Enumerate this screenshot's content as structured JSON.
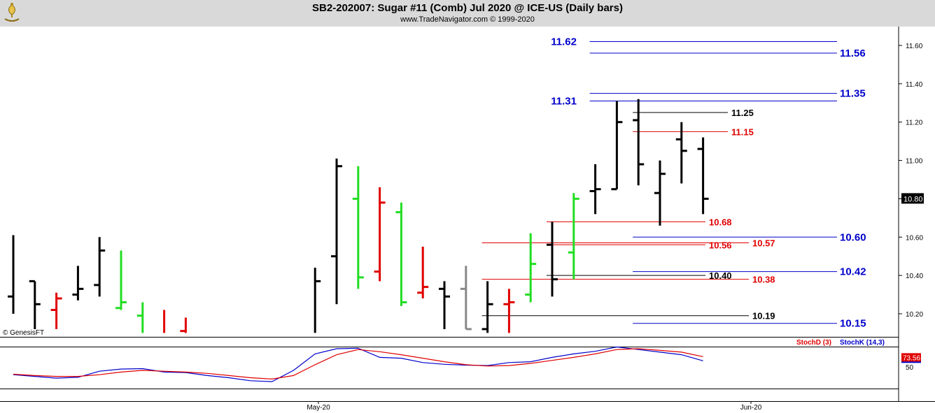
{
  "header": {
    "title": "SB2-202007:  Sugar #11 (Comb) Jul 2020 @ ICE-US  (Daily bars)",
    "subtitle": "www.TradeNavigator.com © 1999-2020",
    "logo_icon": "trade-navigator-logo-icon"
  },
  "watermark": "© GenesisFT",
  "colors": {
    "up_bar": "#000000",
    "down_bar": "#e00000",
    "green_bar": "#22dd22",
    "gray_bar": "#888888",
    "blue_level": "#0000cc",
    "red_level": "#e00000",
    "black_level": "#000000",
    "stoch_d": "#e00000",
    "stoch_k": "#0000cc",
    "header_bg": "#d9d9d9"
  },
  "chart_data": [
    {
      "type": "ohlc",
      "y_tick_labels": [
        "11.60",
        "11.40",
        "11.20",
        "11.00",
        "10.80",
        "10.60",
        "10.40",
        "10.20"
      ],
      "y_ticks": [
        11.6,
        11.4,
        11.2,
        11.0,
        10.8,
        10.6,
        10.4,
        10.2
      ],
      "ylim": [
        10.1,
        11.72
      ],
      "x_tick_labels": [
        "May-20",
        "Jun-20"
      ],
      "last_price_label": "10.80",
      "bars": [
        {
          "slot": 0,
          "open": 10.29,
          "high": 10.61,
          "low": 10.2,
          "close": null,
          "color": "black"
        },
        {
          "slot": 1,
          "open": 10.37,
          "high": 10.37,
          "low": 10.12,
          "close": 10.25,
          "color": "black"
        },
        {
          "slot": 2,
          "open": 10.22,
          "high": 10.31,
          "low": 10.12,
          "close": 10.28,
          "color": "red"
        },
        {
          "slot": 3,
          "open": 10.3,
          "high": 10.45,
          "low": 10.27,
          "close": 10.33,
          "color": "black"
        },
        {
          "slot": 4,
          "open": 10.35,
          "high": 10.6,
          "low": 10.29,
          "close": 10.53,
          "color": "black"
        },
        {
          "slot": 5,
          "open": 10.23,
          "high": 10.53,
          "low": 10.22,
          "close": 10.26,
          "color": "green"
        },
        {
          "slot": 6,
          "open": 10.19,
          "high": 10.26,
          "low": 10.1,
          "close": null,
          "color": "green"
        },
        {
          "slot": 7,
          "open": null,
          "high": 10.22,
          "low": 10.1,
          "close": null,
          "color": "red"
        },
        {
          "slot": 8,
          "open": 10.11,
          "high": 10.18,
          "low": 10.1,
          "close": null,
          "color": "red"
        },
        {
          "slot": 14,
          "open": null,
          "high": 10.44,
          "low": 10.1,
          "close": 10.37,
          "color": "black"
        },
        {
          "slot": 15,
          "open": 10.5,
          "high": 11.01,
          "low": 10.25,
          "close": 10.97,
          "color": "black"
        },
        {
          "slot": 16,
          "open": 10.8,
          "high": 10.97,
          "low": 10.33,
          "close": 10.39,
          "color": "green"
        },
        {
          "slot": 17,
          "open": 10.42,
          "high": 10.86,
          "low": 10.37,
          "close": 10.78,
          "color": "red"
        },
        {
          "slot": 18,
          "open": 10.73,
          "high": 10.78,
          "low": 10.24,
          "close": 10.26,
          "color": "green"
        },
        {
          "slot": 19,
          "open": 10.31,
          "high": 10.55,
          "low": 10.28,
          "close": 10.34,
          "color": "red"
        },
        {
          "slot": 20,
          "open": 10.33,
          "high": 10.37,
          "low": 10.12,
          "close": 10.29,
          "color": "black"
        },
        {
          "slot": 21,
          "open": 10.33,
          "high": 10.45,
          "low": 10.12,
          "close": 10.12,
          "color": "gray"
        },
        {
          "slot": 22,
          "open": 10.12,
          "high": 10.37,
          "low": 10.1,
          "close": 10.25,
          "color": "black"
        },
        {
          "slot": 23,
          "open": 10.25,
          "high": 10.33,
          "low": 10.1,
          "close": 10.26,
          "color": "red"
        },
        {
          "slot": 24,
          "open": 10.3,
          "high": 10.62,
          "low": 10.26,
          "close": 10.46,
          "color": "green"
        },
        {
          "slot": 25,
          "open": 10.56,
          "high": 10.68,
          "low": 10.29,
          "close": 10.38,
          "color": "black"
        },
        {
          "slot": 26,
          "open": 10.52,
          "high": 10.83,
          "low": 10.38,
          "close": 10.8,
          "color": "green"
        },
        {
          "slot": 27,
          "open": 10.84,
          "high": 10.98,
          "low": 10.72,
          "close": 10.85,
          "color": "black"
        },
        {
          "slot": 28,
          "open": 10.85,
          "high": 11.31,
          "low": 10.85,
          "close": 11.2,
          "color": "black"
        },
        {
          "slot": 29,
          "open": 11.21,
          "high": 11.32,
          "low": 10.87,
          "close": 10.98,
          "color": "black"
        },
        {
          "slot": 30,
          "open": 10.83,
          "high": 11.0,
          "low": 10.66,
          "close": 10.93,
          "color": "black"
        },
        {
          "slot": 31,
          "open": 11.11,
          "high": 11.2,
          "low": 10.88,
          "close": 11.05,
          "color": "black"
        },
        {
          "slot": 32,
          "open": 11.06,
          "high": 11.12,
          "low": 10.72,
          "close": 10.8,
          "color": "black"
        }
      ],
      "levels": [
        {
          "value": 11.62,
          "label": "11.62",
          "color": "blue",
          "from_slot": 27,
          "label_side": "left"
        },
        {
          "value": 11.56,
          "label": "11.56",
          "color": "blue",
          "from_slot": 27,
          "label_side": "right"
        },
        {
          "value": 11.35,
          "label": "11.35",
          "color": "blue",
          "from_slot": 27,
          "label_side": "right"
        },
        {
          "value": 11.31,
          "label": "11.31",
          "color": "blue",
          "from_slot": 27,
          "label_side": "left"
        },
        {
          "value": 11.25,
          "label": "11.25",
          "color": "black",
          "from_slot": 29,
          "label_side": "short"
        },
        {
          "value": 11.15,
          "label": "11.15",
          "color": "red",
          "from_slot": 29,
          "label_side": "short"
        },
        {
          "value": 10.68,
          "label": "10.68",
          "color": "red",
          "from_slot": 25,
          "label_side": "mid"
        },
        {
          "value": 10.6,
          "label": "10.60",
          "color": "blue",
          "from_slot": 29,
          "label_side": "right"
        },
        {
          "value": 10.57,
          "label": "10.57",
          "color": "red",
          "from_slot": 22,
          "label_side": "long"
        },
        {
          "value": 10.56,
          "label": "10.56",
          "color": "red",
          "from_slot": 25,
          "label_side": "mid"
        },
        {
          "value": 10.42,
          "label": "10.42",
          "color": "blue",
          "from_slot": 29,
          "label_side": "right"
        },
        {
          "value": 10.4,
          "label": "10.40",
          "color": "black",
          "from_slot": 25,
          "label_side": "mid"
        },
        {
          "value": 10.38,
          "label": "10.38",
          "color": "red",
          "from_slot": 22,
          "label_side": "long"
        },
        {
          "value": 10.19,
          "label": "10.19",
          "color": "black",
          "from_slot": 22,
          "label_side": "long"
        },
        {
          "value": 10.15,
          "label": "10.15",
          "color": "blue",
          "from_slot": 29,
          "label_side": "right"
        }
      ]
    },
    {
      "type": "line",
      "title": "",
      "series": [
        {
          "name": "StochD (3)",
          "color": "#e00000",
          "values": [
            33,
            30,
            28,
            28,
            32,
            38,
            42,
            40,
            38,
            35,
            30,
            25,
            22,
            30,
            55,
            78,
            90,
            85,
            78,
            70,
            62,
            55,
            52,
            53,
            58,
            65,
            72,
            80,
            90,
            92,
            88,
            84,
            73.56
          ]
        },
        {
          "name": "StochK (14,3)",
          "color": "#0000cc",
          "values": [
            32,
            28,
            24,
            26,
            40,
            45,
            46,
            38,
            37,
            30,
            25,
            18,
            16,
            42,
            80,
            92,
            93,
            72,
            70,
            60,
            56,
            54,
            53,
            60,
            62,
            72,
            80,
            86,
            96,
            90,
            84,
            78,
            64
          ]
        }
      ],
      "y_tick_labels": [
        "50"
      ],
      "last_value_label": "73.56",
      "ylim": [
        0,
        100
      ]
    }
  ]
}
